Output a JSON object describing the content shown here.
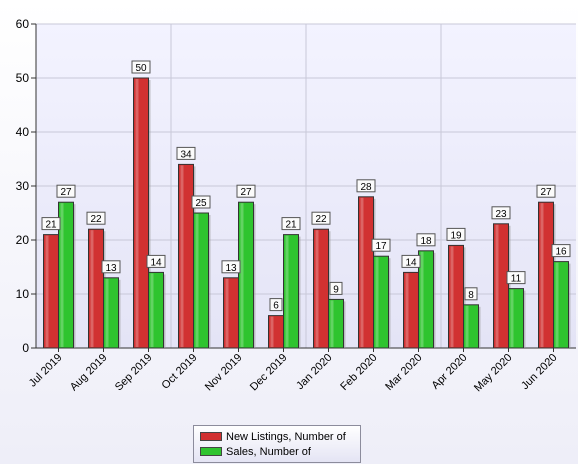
{
  "chart_data": {
    "type": "bar",
    "categories": [
      "Jul 2019",
      "Aug 2019",
      "Sep 2019",
      "Oct 2019",
      "Nov 2019",
      "Dec 2019",
      "Jan 2020",
      "Feb 2020",
      "Mar 2020",
      "Apr 2020",
      "May 2020",
      "Jun 2020"
    ],
    "series": [
      {
        "name": "New Listings, Number of",
        "color": "#d13131",
        "values": [
          21,
          22,
          50,
          34,
          13,
          6,
          22,
          28,
          14,
          19,
          23,
          27
        ]
      },
      {
        "name": "Sales, Number of",
        "color": "#2fc42f",
        "values": [
          27,
          13,
          14,
          25,
          27,
          21,
          9,
          17,
          18,
          8,
          11,
          16
        ]
      }
    ],
    "title": "",
    "xlabel": "",
    "ylabel": "",
    "ylim": [
      0,
      60
    ],
    "yticks": [
      0,
      10,
      20,
      30,
      40,
      50,
      60
    ],
    "grid": true,
    "legend_position": "bottom-center",
    "data_labels": true
  }
}
